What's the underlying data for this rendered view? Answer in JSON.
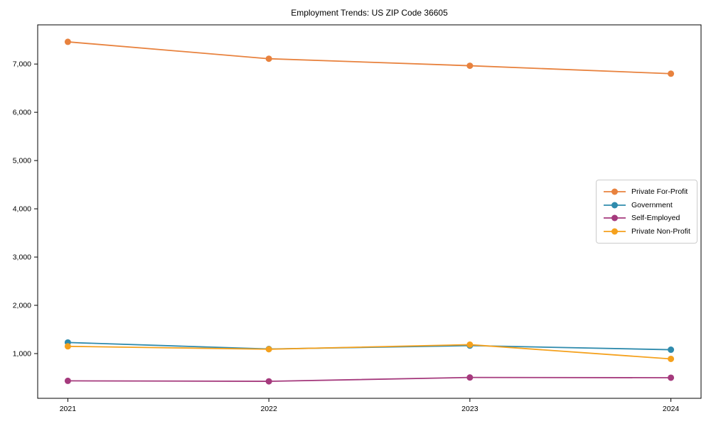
{
  "title": "Employment Trends: US ZIP Code 36605",
  "chart_data": {
    "type": "line",
    "title": "Employment Trends: US ZIP Code 36605",
    "xlabel": "",
    "ylabel": "",
    "categories": [
      "2021",
      "2022",
      "2023",
      "2024"
    ],
    "x": [
      2021,
      2022,
      2023,
      2024
    ],
    "series": [
      {
        "name": "Private For-Profit",
        "color": "#e8823e",
        "values": [
          7460,
          7110,
          6965,
          6800
        ]
      },
      {
        "name": "Government",
        "color": "#2f8bad",
        "values": [
          1230,
          1095,
          1165,
          1080
        ]
      },
      {
        "name": "Self-Employed",
        "color": "#a53a7d",
        "values": [
          435,
          425,
          505,
          500
        ]
      },
      {
        "name": "Private Non-Profit",
        "color": "#f5a11d",
        "values": [
          1150,
          1090,
          1185,
          890
        ]
      }
    ],
    "yticks": [
      1000,
      2000,
      3000,
      4000,
      5000,
      6000,
      7000
    ],
    "ytick_labels": [
      "1,000",
      "2,000",
      "3,000",
      "4,000",
      "5,000",
      "6,000",
      "7,000"
    ],
    "xlim": [
      2020.85,
      2024.15
    ],
    "ylim": [
      73,
      7812
    ],
    "grid": false,
    "legend_position": "center right",
    "axis_color": "#000000",
    "background_color": "#ffffff"
  }
}
